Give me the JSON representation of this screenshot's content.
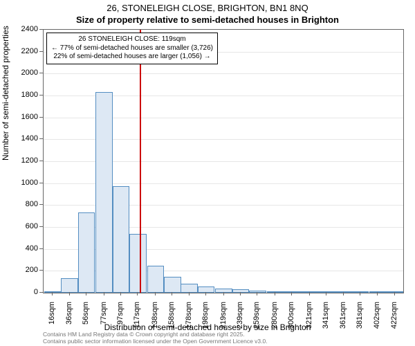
{
  "title": "26, STONELEIGH CLOSE, BRIGHTON, BN1 8NQ",
  "subtitle": "Size of property relative to semi-detached houses in Brighton",
  "y_axis_title": "Number of semi-detached properties",
  "x_axis_title": "Distribution of semi-detached houses by size in Brighton",
  "annotation": {
    "line1": "26 STONELEIGH CLOSE: 119sqm",
    "line2": "← 77% of semi-detached houses are smaller (3,726)",
    "line3": "22% of semi-detached houses are larger (1,056) →"
  },
  "footer": {
    "line1": "Contains HM Land Registry data © Crown copyright and database right 2025.",
    "line2": "Contains public sector information licensed under the Open Government Licence v3.0."
  },
  "chart": {
    "type": "histogram",
    "ylim": [
      0,
      2400
    ],
    "yticks": [
      0,
      200,
      400,
      600,
      800,
      1000,
      1200,
      1400,
      1600,
      1800,
      2000,
      2200,
      2400
    ],
    "x_min": 5,
    "x_max": 432,
    "x_tick_positions": [
      16,
      36,
      56,
      77,
      97,
      117,
      138,
      158,
      178,
      198,
      219,
      239,
      259,
      280,
      300,
      321,
      341,
      361,
      381,
      402,
      422
    ],
    "x_tick_labels": [
      "16sqm",
      "36sqm",
      "56sqm",
      "77sqm",
      "97sqm",
      "117sqm",
      "138sqm",
      "158sqm",
      "178sqm",
      "198sqm",
      "219sqm",
      "239sqm",
      "259sqm",
      "280sqm",
      "300sqm",
      "321sqm",
      "341sqm",
      "361sqm",
      "381sqm",
      "402sqm",
      "422sqm"
    ],
    "bars": [
      {
        "x": 16,
        "v": 5
      },
      {
        "x": 36,
        "v": 135
      },
      {
        "x": 56,
        "v": 730
      },
      {
        "x": 77,
        "v": 1830
      },
      {
        "x": 97,
        "v": 975
      },
      {
        "x": 117,
        "v": 540
      },
      {
        "x": 138,
        "v": 245
      },
      {
        "x": 158,
        "v": 145
      },
      {
        "x": 178,
        "v": 85
      },
      {
        "x": 198,
        "v": 58
      },
      {
        "x": 219,
        "v": 40
      },
      {
        "x": 239,
        "v": 30
      },
      {
        "x": 259,
        "v": 18
      },
      {
        "x": 280,
        "v": 10
      },
      {
        "x": 300,
        "v": 6
      },
      {
        "x": 321,
        "v": 4
      },
      {
        "x": 341,
        "v": 3
      },
      {
        "x": 361,
        "v": 2
      },
      {
        "x": 381,
        "v": 2
      },
      {
        "x": 402,
        "v": 1
      },
      {
        "x": 422,
        "v": 1
      }
    ],
    "bar_fill": "#dde8f4",
    "bar_border": "#538dc1",
    "marker_x": 119,
    "marker_color": "#cc0000",
    "grid_color": "#e6e6e6",
    "axis_color": "#666666",
    "background_color": "#ffffff"
  }
}
